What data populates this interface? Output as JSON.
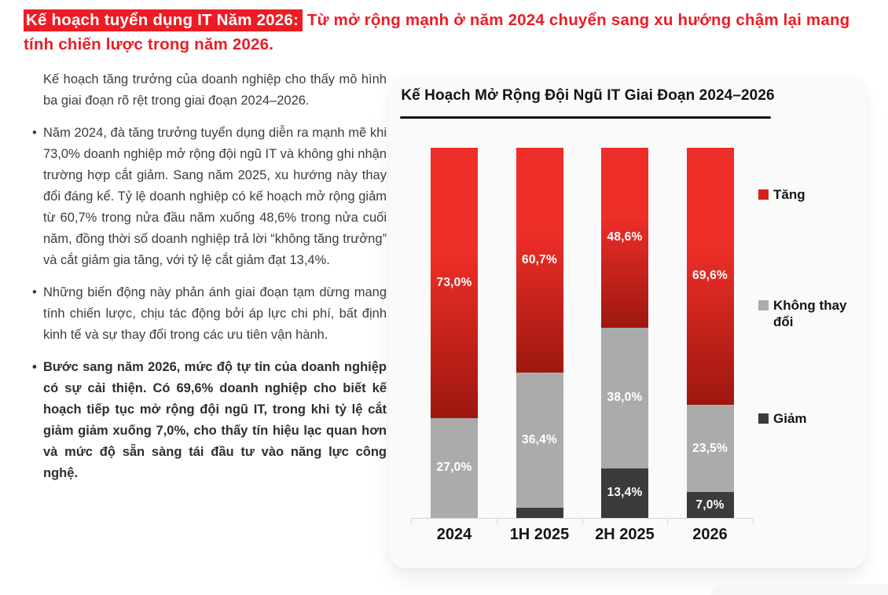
{
  "headline": {
    "highlight": "Kế hoạch tuyển dụng IT Năm 2026:",
    "rest": " Từ mở rộng mạnh ở năm 2024 chuyển sang xu hướng chậm lại mang tính chiến lược trong năm 2026.",
    "accent_color": "#ed1c24"
  },
  "body": {
    "intro": "Kế hoạch tăng trưởng của doanh nghiệp cho thấy mô hình ba giai đoạn rõ rệt trong giai đoạn 2024–2026.",
    "bullets": [
      {
        "text": "Năm 2024, đà tăng trưởng tuyển dụng diễn ra mạnh mẽ khi 73,0% doanh nghiệp mở rộng đội ngũ IT và không ghi nhận trường hợp cắt giảm. Sang năm 2025, xu hướng này thay đổi đáng kể. Tỷ lệ doanh nghiệp có kế hoạch mở rộng giảm từ 60,7% trong nửa đầu năm xuống 48,6% trong nửa cuối năm, đồng thời số doanh nghiệp trả lời “không tăng trưởng” và cắt giảm gia tăng, với tỷ lệ cắt giảm đạt 13,4%.",
        "bold": false
      },
      {
        "text": "Những biến động này phản ánh giai đoạn tạm dừng mang tính chiến lược, chịu tác động bởi áp lực chi phí, bất định kinh tế và sự thay đổi trong các ưu tiên vận hành.",
        "bold": false
      },
      {
        "text": "Bước sang năm 2026, mức độ tự tin của doanh nghiệp có sự cải thiện. Có 69,6% doanh nghiệp cho biết kế hoạch tiếp tục mở rộng đội ngũ IT, trong khi tỷ lệ cắt giảm giảm xuống 7,0%, cho thấy tín hiệu lạc quan hơn và mức độ sẵn sàng tái đầu tư vào năng lực công nghệ.",
        "bold": true
      }
    ]
  },
  "chart_data": {
    "type": "bar",
    "stacked": true,
    "title": "Kế Hoạch Mở Rộng Đội Ngũ IT Giai Đoạn 2024–2026",
    "categories": [
      "2024",
      "1H 2025",
      "2H 2025",
      "2026"
    ],
    "series": [
      {
        "name": "Tăng",
        "color": "#d7201a",
        "gradient_top": "#ee2e28",
        "gradient_bottom": "#9d180f",
        "values": [
          73.0,
          60.7,
          48.6,
          69.6
        ],
        "labels": [
          "73,0%",
          "60,7%",
          "48,6%",
          "69,6%"
        ]
      },
      {
        "name": "Không thay đổi",
        "color": "#ababab",
        "values": [
          27.0,
          36.4,
          38.0,
          23.5
        ],
        "labels": [
          "27,0%",
          "36,4%",
          "38,0%",
          "23,5%"
        ]
      },
      {
        "name": "Giảm",
        "color": "#3b3b3b",
        "values": [
          0.0,
          2.8,
          13.4,
          7.0
        ],
        "labels": [
          "0,0%",
          "2,8%",
          "13,4%",
          "7,0%"
        ]
      }
    ],
    "ylim": [
      0,
      100
    ],
    "value_suffix": "%",
    "grid": false,
    "legend_position": "right"
  }
}
